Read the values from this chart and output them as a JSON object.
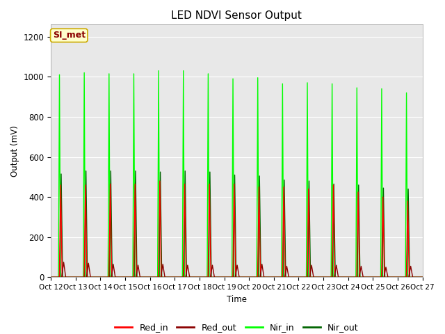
{
  "title": "LED NDVI Sensor Output",
  "xlabel": "Time",
  "ylabel": "Output (mV)",
  "ylim": [
    0,
    1260
  ],
  "background_color": "#e8e8e8",
  "figure_color": "#ffffff",
  "series": {
    "Red_in": {
      "color": "#ff0000",
      "lw": 1.0
    },
    "Red_out": {
      "color": "#8b0000",
      "lw": 1.0
    },
    "Nir_in": {
      "color": "#00ff00",
      "lw": 1.0
    },
    "Nir_out": {
      "color": "#006400",
      "lw": 1.0
    }
  },
  "x_tick_labels": [
    "Oct 12",
    "Oct 13",
    "Oct 14",
    "Oct 15",
    "Oct 16",
    "Oct 17",
    "Oct 18",
    "Oct 19",
    "Oct 20",
    "Oct 21",
    "Oct 22",
    "Oct 23",
    "Oct 24",
    "Oct 25",
    "Oct 26",
    "Oct 27"
  ],
  "annotation_text": "SI_met",
  "annotation_bg": "#ffffcc",
  "annotation_border": "#ccaa00",
  "yticks": [
    0,
    200,
    400,
    600,
    800,
    1000,
    1200
  ],
  "pulse_peaks_red_in": [
    460,
    460,
    465,
    465,
    480,
    465,
    465,
    465,
    450,
    450,
    440,
    460,
    425,
    400,
    380
  ],
  "pulse_peaks_red_out": [
    75,
    70,
    65,
    60,
    65,
    60,
    60,
    60,
    65,
    55,
    60,
    60,
    55,
    50,
    55
  ],
  "pulse_peaks_nir_in": [
    1010,
    1020,
    1015,
    1015,
    1030,
    1030,
    1015,
    990,
    995,
    965,
    970,
    965,
    945,
    940,
    920
  ],
  "pulse_peaks_nir_out": [
    515,
    530,
    530,
    530,
    525,
    530,
    525,
    510,
    505,
    485,
    480,
    465,
    460,
    445,
    440
  ]
}
